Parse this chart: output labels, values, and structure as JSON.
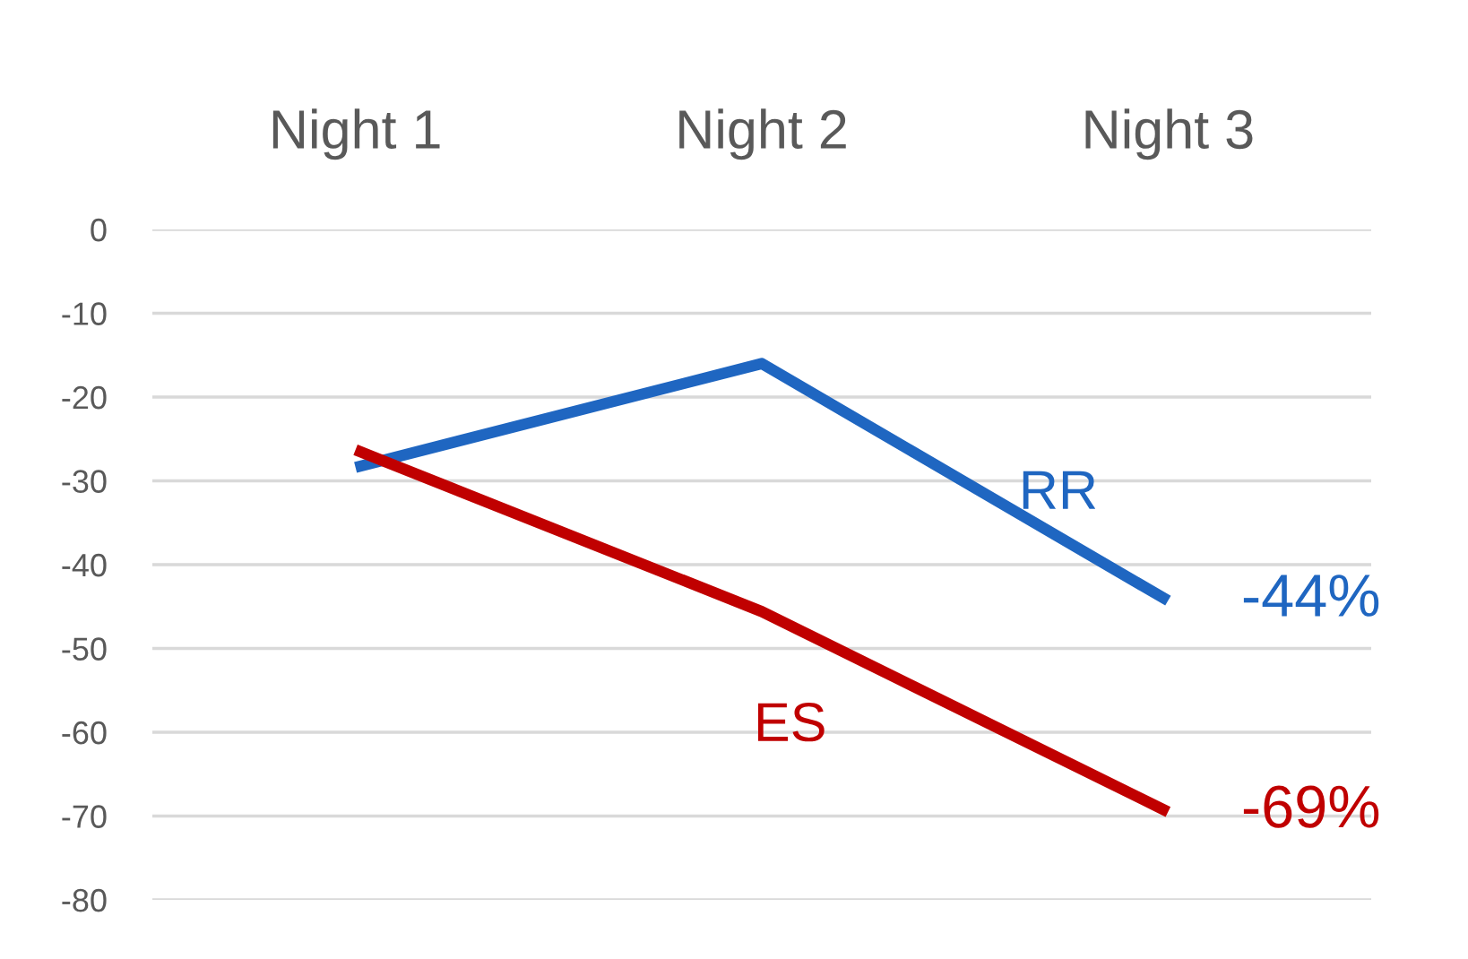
{
  "chart_data": {
    "type": "line",
    "categories": [
      "Night 1",
      "Night 2",
      "Night 3"
    ],
    "series": [
      {
        "name": "RR",
        "color": "#1f66c1",
        "values": [
          -28.4,
          -16.0,
          -44.3
        ],
        "value_labels": [
          null,
          null,
          "-44%"
        ]
      },
      {
        "name": "ES",
        "color": "#c00000",
        "values": [
          -26.3,
          -45.6,
          -69.5
        ],
        "value_labels": [
          null,
          null,
          "-69%"
        ]
      }
    ],
    "ylim": [
      -80,
      0
    ],
    "yticks": [
      0,
      {
        "value": -10,
        "label": "-10"
      },
      {
        "value": -20,
        "label": "-20"
      },
      {
        "value": -30,
        "label": "-30"
      },
      {
        "value": -40,
        "label": "-40"
      },
      {
        "value": -50,
        "label": "-50"
      },
      {
        "value": -60,
        "label": "-60"
      },
      {
        "value": -70,
        "label": "-70"
      },
      {
        "value": -80,
        "label": "-80"
      }
    ],
    "grid": "y",
    "legend": false,
    "marker": "none",
    "line_style": "solid"
  }
}
